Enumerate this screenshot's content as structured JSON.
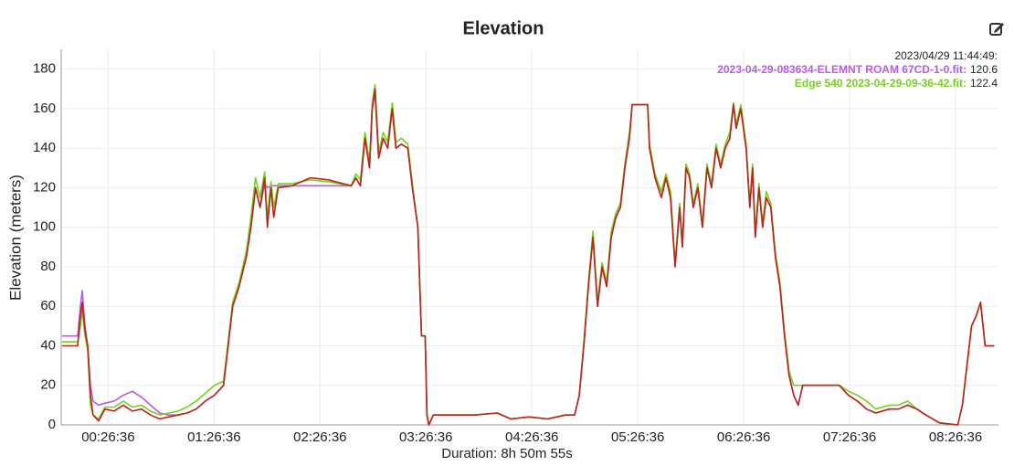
{
  "chart_data": {
    "type": "line",
    "title": "Elevation",
    "ylabel": "Elevation (meters)",
    "xlabel": "Duration: 8h 50m 55s",
    "x": [
      31,
      248,
      558,
      651,
      713,
      806,
      899,
      992,
      1085,
      1271,
      1488,
      1798,
      2108,
      2418,
      2728,
      3038,
      3348,
      3658,
      3968,
      4278,
      4588,
      4898,
      5208,
      5518,
      5673,
      5828,
      6045,
      6293,
      6448,
      6603,
      6758,
      6913,
      7006,
      7130,
      7223,
      7378,
      7843,
      8463,
      9083,
      9858,
      10013,
      10168,
      10323,
      10478,
      10571,
      10664,
      10788,
      10943,
      11098,
      11253,
      11377,
      11563,
      11780,
      11935,
      12121,
      12245,
      12369,
      12431,
      12493,
      12648,
      13113,
      14043,
      14818,
      15283,
      15903,
      16523,
      17143,
      17453,
      17608,
      17763,
      17918,
      18073,
      18228,
      18383,
      18538,
      18693,
      18848,
      19003,
      19158,
      19313,
      19406,
      19623,
      19933,
      19995,
      20181,
      20398,
      20553,
      20708,
      20863,
      21018,
      21111,
      21235,
      21359,
      21483,
      21638,
      21793,
      21948,
      22103,
      22258,
      22413,
      22568,
      22723,
      22847,
      22940,
      23095,
      23281,
      23405,
      23498,
      23591,
      23715,
      23839,
      23963,
      24118,
      24273,
      24428,
      24583,
      24738,
      24893,
      25048,
      25203,
      25823,
      26443,
      26753,
      27063,
      27373,
      27683,
      28148,
      28458,
      28768,
      29078,
      29388,
      29853,
      30473,
      30628,
      30783,
      30938,
      31093,
      31248,
      31403,
      31713
    ],
    "series": [
      {
        "color": "#b65ce6",
        "values": [
          45,
          45,
          45,
          60,
          68,
          50,
          40,
          20,
          12,
          10,
          11,
          12,
          15,
          17,
          14,
          10,
          6,
          5,
          5,
          6,
          8,
          12,
          15,
          20,
          40,
          60,
          70,
          85,
          100,
          120,
          110,
          122,
          120,
          121,
          121,
          121,
          121,
          121,
          121,
          121,
          125,
          121,
          145,
          130,
          160,
          168,
          135,
          145,
          140,
          160,
          140,
          142,
          140,
          120,
          100,
          45,
          45,
          5,
          0,
          5,
          5,
          5,
          6,
          3,
          4,
          3,
          5,
          5,
          15,
          40,
          70,
          95,
          60,
          80,
          70,
          95,
          105,
          110,
          130,
          145,
          162,
          162,
          162,
          140,
          125,
          115,
          125,
          115,
          80,
          110,
          90,
          130,
          125,
          110,
          120,
          100,
          130,
          120,
          140,
          130,
          140,
          145,
          162,
          150,
          160,
          140,
          110,
          130,
          95,
          120,
          100,
          115,
          110,
          85,
          70,
          45,
          25,
          15,
          10,
          20,
          20,
          20,
          15,
          12,
          8,
          6,
          8,
          8,
          10,
          8,
          5,
          1,
          0,
          10,
          30,
          50,
          55,
          62,
          40,
          40
        ]
      },
      {
        "color": "#74d11c",
        "values": [
          42,
          42,
          42,
          50,
          58,
          45,
          38,
          10,
          5,
          3,
          9,
          9,
          12,
          9,
          10,
          7,
          5,
          6,
          7,
          9,
          12,
          16,
          20,
          22,
          42,
          62,
          72,
          88,
          105,
          125,
          115,
          128,
          105,
          123,
          110,
          122,
          122,
          124,
          123,
          121,
          127,
          124,
          148,
          133,
          163,
          172,
          138,
          148,
          143,
          163,
          143,
          145,
          142,
          122,
          100,
          45,
          45,
          5,
          0,
          5,
          5,
          5,
          6,
          3,
          4,
          3,
          5,
          5,
          15,
          42,
          72,
          98,
          62,
          82,
          72,
          98,
          107,
          112,
          132,
          148,
          162,
          162,
          162,
          142,
          127,
          118,
          127,
          118,
          82,
          112,
          92,
          132,
          127,
          112,
          122,
          102,
          132,
          122,
          142,
          132,
          142,
          148,
          163,
          152,
          162,
          142,
          112,
          132,
          97,
          122,
          102,
          118,
          112,
          87,
          72,
          47,
          27,
          20,
          20,
          20,
          20,
          20,
          17,
          15,
          12,
          8,
          10,
          10,
          12,
          8,
          5,
          1,
          0,
          10,
          30,
          50,
          55,
          62,
          40,
          40
        ]
      },
      {
        "color": "#b8261e",
        "values": [
          40,
          40,
          40,
          55,
          62,
          48,
          40,
          15,
          5,
          2,
          8,
          7,
          10,
          7,
          8,
          5,
          3,
          4,
          5,
          6,
          8,
          12,
          15,
          20,
          40,
          60,
          70,
          85,
          100,
          120,
          110,
          125,
          100,
          120,
          105,
          120,
          121,
          125,
          124,
          121,
          125,
          121,
          145,
          130,
          160,
          170,
          135,
          145,
          140,
          160,
          140,
          142,
          140,
          120,
          100,
          45,
          45,
          5,
          0,
          5,
          5,
          5,
          6,
          3,
          4,
          3,
          5,
          5,
          15,
          40,
          70,
          95,
          60,
          80,
          70,
          95,
          105,
          110,
          130,
          145,
          162,
          162,
          162,
          140,
          125,
          115,
          125,
          115,
          80,
          110,
          90,
          130,
          125,
          110,
          120,
          100,
          130,
          120,
          140,
          130,
          140,
          145,
          162,
          150,
          160,
          140,
          110,
          130,
          95,
          120,
          100,
          115,
          110,
          85,
          70,
          45,
          25,
          15,
          10,
          20,
          20,
          20,
          15,
          12,
          8,
          6,
          8,
          8,
          10,
          8,
          5,
          1,
          0,
          10,
          30,
          50,
          55,
          62,
          40,
          40
        ]
      }
    ],
    "xlim": [
      0,
      31855
    ],
    "xticks": [
      {
        "value": 1596,
        "label": "00:26:36"
      },
      {
        "value": 5196,
        "label": "01:26:36"
      },
      {
        "value": 8796,
        "label": "02:26:36"
      },
      {
        "value": 12396,
        "label": "03:26:36"
      },
      {
        "value": 15996,
        "label": "04:26:36"
      },
      {
        "value": 19596,
        "label": "05:26:36"
      },
      {
        "value": 23196,
        "label": "06:26:36"
      },
      {
        "value": 26796,
        "label": "07:26:36"
      },
      {
        "value": 30396,
        "label": "08:26:36"
      }
    ],
    "ylim": [
      0,
      190
    ],
    "yticks": [
      0,
      20,
      40,
      60,
      80,
      100,
      120,
      140,
      160,
      180
    ],
    "grid": true,
    "tooltip": {
      "time": "2023/04/29 11:44:49:",
      "entries": [
        {
          "label": "2023-04-29-083634-ELEMNT ROAM 67CD-1-0.fit:",
          "value": 120.6,
          "color": "#b65ce6"
        },
        {
          "label": "Edge 540 2023-04-29-09-36-42.fit:",
          "value": 122.4,
          "color": "#74d11c"
        }
      ]
    }
  }
}
